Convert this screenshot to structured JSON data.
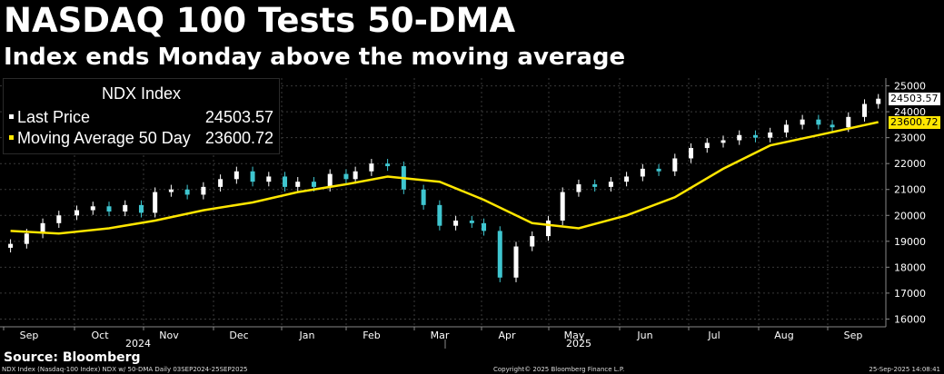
{
  "header": {
    "title": "NASDAQ 100 Tests 50-DMA",
    "subtitle": "Index ends Monday above the moving average"
  },
  "legend": {
    "title": "NDX Index",
    "items": [
      {
        "label": "Last Price",
        "value": "24503.57",
        "color": "#ffffff"
      },
      {
        "label": "Moving Average 50 Day",
        "value": "23600.72",
        "color": "#ffe600"
      }
    ]
  },
  "source": "Source: Bloomberg",
  "footer": {
    "left": "NDX Index (Nasdaq-100 Index) NDX w/ 50-DMA  Daily 03SEP2024-25SEP2025",
    "center": "Copyright© 2025 Bloomberg Finance L.P.",
    "right": "25-Sep-2025 14:08:41"
  },
  "colors": {
    "background": "#000000",
    "grid": "#3a3a3a",
    "up_candle": "#ffffff",
    "down_candle": "#3fc6d0",
    "ma_line": "#ffe600"
  },
  "chart_data": {
    "type": "line",
    "title": "NASDAQ 100 Tests 50-DMA",
    "subtitle": "Index ends Monday above the moving average",
    "xlabel": "",
    "ylabel": "",
    "x_ticks": [
      "Sep",
      "Oct",
      "Nov",
      "Dec",
      "Jan",
      "Feb",
      "Mar",
      "Apr",
      "May",
      "Jun",
      "Jul",
      "Aug",
      "Sep"
    ],
    "year_labels": [
      "2024",
      "2025"
    ],
    "y_ticks": [
      16000,
      17000,
      18000,
      19000,
      20000,
      21000,
      22000,
      23000,
      24000,
      25000
    ],
    "ylim": [
      15700,
      25300
    ],
    "grid": true,
    "y_axis_side": "right",
    "last_price_tag": 24503.57,
    "ma_tag": 23600.72,
    "series": [
      {
        "name": "Last Price",
        "style": "candlestick",
        "x": [
          "Sep-03",
          "Sep-10",
          "Sep-17",
          "Sep-24",
          "Oct-01",
          "Oct-08",
          "Oct-15",
          "Oct-22",
          "Oct-29",
          "Nov-05",
          "Nov-12",
          "Nov-19",
          "Nov-26",
          "Dec-03",
          "Dec-10",
          "Dec-17",
          "Dec-24",
          "Dec-31",
          "Jan-07",
          "Jan-14",
          "Jan-21",
          "Jan-28",
          "Feb-04",
          "Feb-11",
          "Feb-18",
          "Feb-25",
          "Mar-04",
          "Mar-11",
          "Mar-18",
          "Mar-25",
          "Apr-01",
          "Apr-08",
          "Apr-15",
          "Apr-22",
          "Apr-29",
          "May-06",
          "May-13",
          "May-20",
          "May-27",
          "Jun-03",
          "Jun-10",
          "Jun-17",
          "Jun-24",
          "Jul-01",
          "Jul-08",
          "Jul-15",
          "Jul-22",
          "Jul-29",
          "Aug-05",
          "Aug-12",
          "Aug-19",
          "Aug-26",
          "Sep-02",
          "Sep-09",
          "Sep-16",
          "Sep-22"
        ],
        "values": [
          18900,
          19300,
          19700,
          20000,
          20200,
          20350,
          20150,
          20400,
          20100,
          20900,
          21000,
          20800,
          21100,
          21400,
          21700,
          21300,
          21500,
          21100,
          21300,
          21100,
          21600,
          21400,
          21700,
          22000,
          21900,
          21000,
          20400,
          19600,
          19800,
          19700,
          19400,
          17600,
          18800,
          19200,
          19800,
          20900,
          21200,
          21100,
          21300,
          21500,
          21800,
          21700,
          22200,
          22600,
          22800,
          22900,
          23100,
          23000,
          23200,
          23500,
          23700,
          23500,
          23400,
          23800,
          24300,
          24503.57
        ]
      },
      {
        "name": "Moving Average 50 Day",
        "style": "line",
        "x": [
          "Sep-03",
          "Sep-24",
          "Oct-15",
          "Nov-05",
          "Nov-26",
          "Dec-17",
          "Jan-07",
          "Jan-28",
          "Feb-18",
          "Mar-11",
          "Apr-01",
          "Apr-22",
          "May-13",
          "Jun-03",
          "Jun-24",
          "Jul-15",
          "Aug-05",
          "Aug-26",
          "Sep-22"
        ],
        "values": [
          19400,
          19300,
          19500,
          19800,
          20200,
          20500,
          20900,
          21200,
          21500,
          21300,
          20600,
          19700,
          19500,
          20000,
          20700,
          21800,
          22700,
          23100,
          23600.72
        ]
      }
    ]
  }
}
